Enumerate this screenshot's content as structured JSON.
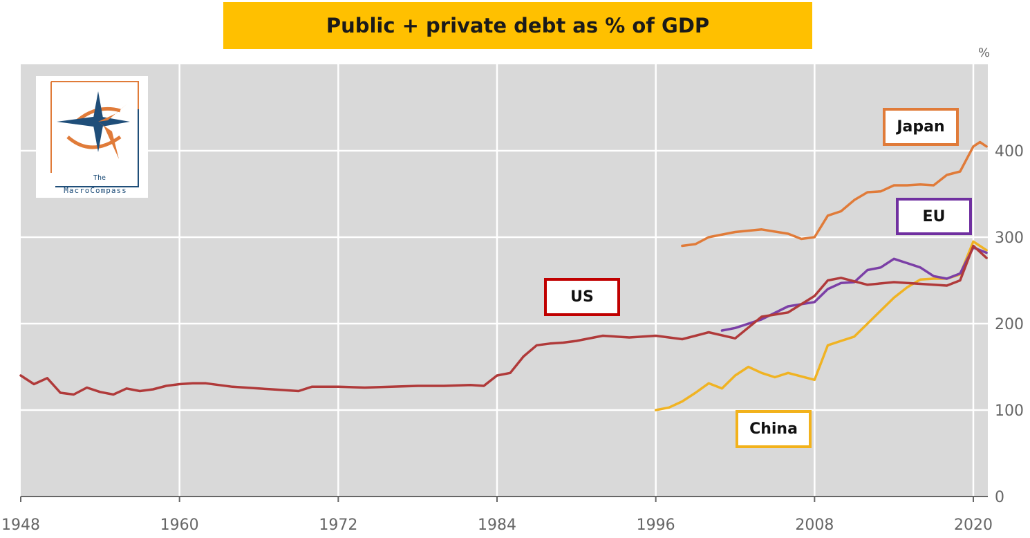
{
  "title": "Public + private debt as % of GDP",
  "logo": {
    "line1": "The",
    "line2": "MacroCompass"
  },
  "chart_data": {
    "type": "line",
    "x_ticks": [
      1948,
      1960,
      1972,
      1984,
      1996,
      2008,
      2020
    ],
    "y_ticks": [
      0,
      100,
      200,
      300,
      400
    ],
    "y_unit": "%",
    "xlim": [
      1948,
      2021
    ],
    "ylim": [
      0,
      500
    ],
    "grid": true,
    "series": [
      {
        "name": "US",
        "color": "#b03a3a",
        "box_color": "#c00000",
        "x": [
          1948,
          1949,
          1950,
          1951,
          1952,
          1953,
          1954,
          1955,
          1956,
          1957,
          1958,
          1959,
          1960,
          1961,
          1962,
          1963,
          1964,
          1965,
          1966,
          1967,
          1968,
          1969,
          1970,
          1971,
          1972,
          1974,
          1976,
          1978,
          1980,
          1982,
          1983,
          1984,
          1985,
          1986,
          1987,
          1988,
          1989,
          1990,
          1992,
          1994,
          1996,
          1998,
          2000,
          2002,
          2004,
          2006,
          2008,
          2009,
          2010,
          2012,
          2014,
          2016,
          2018,
          2019,
          2020,
          2021
        ],
        "values": [
          140,
          130,
          137,
          120,
          118,
          126,
          121,
          118,
          125,
          122,
          124,
          128,
          130,
          131,
          131,
          129,
          127,
          126,
          125,
          124,
          123,
          122,
          127,
          127,
          127,
          126,
          127,
          128,
          128,
          129,
          128,
          140,
          143,
          162,
          175,
          177,
          178,
          180,
          186,
          184,
          186,
          182,
          190,
          183,
          208,
          213,
          232,
          250,
          253,
          245,
          248,
          246,
          244,
          250,
          290,
          276
        ]
      },
      {
        "name": "Japan",
        "color": "#e07b39",
        "box_color": "#e07b39",
        "x": [
          1998,
          1999,
          2000,
          2002,
          2004,
          2006,
          2007,
          2008,
          2009,
          2010,
          2011,
          2012,
          2013,
          2014,
          2015,
          2016,
          2017,
          2018,
          2019,
          2020,
          2020.5,
          2021
        ],
        "values": [
          290,
          292,
          300,
          306,
          309,
          304,
          298,
          300,
          325,
          330,
          343,
          352,
          353,
          360,
          360,
          361,
          360,
          372,
          376,
          405,
          410,
          405
        ]
      },
      {
        "name": "EU",
        "color": "#7b3fa6",
        "box_color": "#7030a0",
        "x": [
          2001,
          2002,
          2004,
          2006,
          2008,
          2009,
          2010,
          2011,
          2012,
          2013,
          2014,
          2015,
          2016,
          2017,
          2018,
          2019,
          2020,
          2021
        ],
        "values": [
          192,
          195,
          205,
          220,
          225,
          240,
          247,
          248,
          262,
          265,
          275,
          270,
          265,
          255,
          252,
          258,
          288,
          282
        ]
      },
      {
        "name": "China",
        "color": "#f0b323",
        "box_color": "#f2b21b",
        "x": [
          1996,
          1997,
          1998,
          1999,
          2000,
          2001,
          2002,
          2003,
          2004,
          2005,
          2006,
          2007,
          2008,
          2009,
          2010,
          2011,
          2012,
          2013,
          2014,
          2015,
          2016,
          2017,
          2018,
          2019,
          2020,
          2021
        ],
        "values": [
          100,
          103,
          110,
          120,
          131,
          125,
          140,
          150,
          143,
          138,
          143,
          139,
          135,
          175,
          180,
          185,
          200,
          215,
          230,
          242,
          251,
          252,
          252,
          257,
          295,
          285
        ]
      }
    ]
  }
}
